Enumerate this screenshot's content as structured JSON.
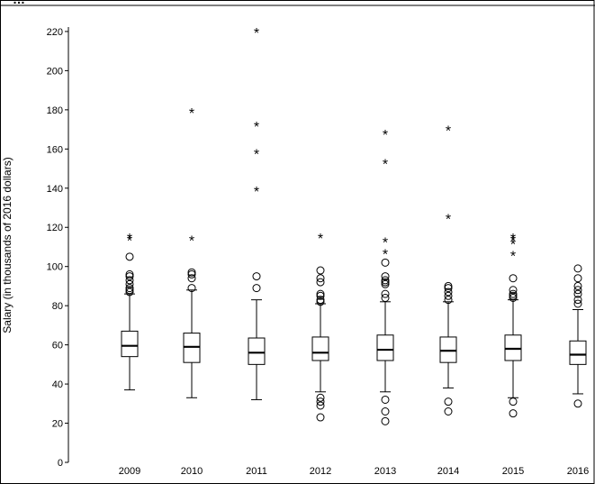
{
  "header": {
    "title": "…"
  },
  "chart_data": {
    "type": "box",
    "title": "",
    "xlabel": "",
    "ylabel": "Salary (in thousands of 2016 dollars)",
    "ylim": [
      0,
      220
    ],
    "yticks": [
      0,
      20,
      40,
      60,
      80,
      100,
      120,
      140,
      160,
      180,
      200,
      220
    ],
    "categories": [
      "2009",
      "2010",
      "2011",
      "2012",
      "2013",
      "2014",
      "2015",
      "2016"
    ],
    "boxes": [
      {
        "category": "2009",
        "whisker_low": 37,
        "q1": 54,
        "median": 59.5,
        "q3": 67,
        "whisker_high": 86,
        "outliers": [
          87,
          88,
          89,
          91,
          93,
          95,
          96,
          105
        ],
        "extremes": [
          114,
          115
        ]
      },
      {
        "category": "2010",
        "whisker_low": 33,
        "q1": 51,
        "median": 59,
        "q3": 66,
        "whisker_high": 88,
        "outliers": [
          89,
          94,
          96,
          97
        ],
        "extremes": [
          114,
          179
        ]
      },
      {
        "category": "2011",
        "whisker_low": 32,
        "q1": 50,
        "median": 56,
        "q3": 63.5,
        "whisker_high": 83,
        "outliers": [
          89,
          95
        ],
        "extremes": [
          139,
          158,
          172,
          220
        ]
      },
      {
        "category": "2012",
        "whisker_low": 36,
        "q1": 52,
        "median": 56,
        "q3": 64,
        "whisker_high": 81,
        "outliers": [
          23,
          29,
          31,
          33,
          82,
          83,
          85,
          86,
          92,
          94,
          98
        ],
        "extremes": [
          115
        ]
      },
      {
        "category": "2013",
        "whisker_low": 36,
        "q1": 52,
        "median": 57.5,
        "q3": 65,
        "whisker_high": 82,
        "outliers": [
          21,
          26,
          32,
          84,
          86,
          91,
          92,
          93,
          95,
          102
        ],
        "extremes": [
          107,
          113,
          153,
          168
        ]
      },
      {
        "category": "2014",
        "whisker_low": 38,
        "q1": 51,
        "median": 57,
        "q3": 64,
        "whisker_high": 82,
        "outliers": [
          26,
          31,
          83,
          85,
          87,
          89,
          90
        ],
        "extremes": [
          125,
          170
        ]
      },
      {
        "category": "2015",
        "whisker_low": 33,
        "q1": 52,
        "median": 58,
        "q3": 65,
        "whisker_high": 83,
        "outliers": [
          25,
          31,
          84,
          85,
          86,
          88,
          94
        ],
        "extremes": [
          106,
          112,
          114,
          115
        ]
      },
      {
        "category": "2016",
        "whisker_low": 35,
        "q1": 50,
        "median": 55,
        "q3": 62,
        "whisker_high": 78,
        "outliers": [
          30,
          81,
          83,
          86,
          88,
          90,
          94,
          99
        ],
        "extremes": []
      }
    ],
    "grid": false,
    "legend": "none"
  }
}
